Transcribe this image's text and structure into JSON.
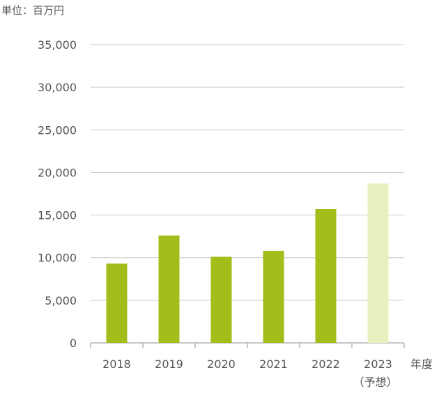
{
  "chart_data": {
    "type": "bar",
    "unit_label": "単位：百万円",
    "xlabel": "年度",
    "ylim": [
      0,
      35000
    ],
    "yticks": [
      0,
      5000,
      10000,
      15000,
      20000,
      25000,
      30000,
      35000
    ],
    "ytick_labels": [
      "0",
      "5,000",
      "10,000",
      "15,000",
      "20,000",
      "25,000",
      "30,000",
      "35,000"
    ],
    "categories": [
      "2018",
      "2019",
      "2020",
      "2021",
      "2022",
      "2023"
    ],
    "category_sublabels": [
      "",
      "",
      "",
      "",
      "",
      "（予想）"
    ],
    "values": [
      9300,
      12600,
      10100,
      10800,
      15700,
      18700
    ],
    "colors": [
      "#a3bd1a",
      "#a3bd1a",
      "#a3bd1a",
      "#a3bd1a",
      "#a3bd1a",
      "#e9f0c0"
    ],
    "grid": true,
    "gridline_color": "#c9c9c9",
    "axis_color": "#b3b3b3",
    "text_color": "#555555"
  }
}
